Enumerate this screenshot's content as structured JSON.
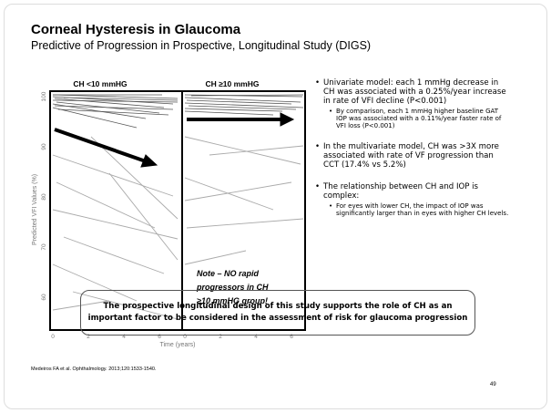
{
  "header": {
    "title": "Corneal Hysteresis in Glaucoma",
    "subtitle": "Predictive of Progression in Prospective, Longitudinal Study (DIGS)"
  },
  "figure": {
    "panels": [
      "CH <10 mmHG",
      "CH ≥10 mmHG"
    ],
    "y_axis_label": "Predicted VFI Values (%)",
    "yticks": [
      "100",
      "90",
      "80",
      "70",
      "60"
    ],
    "xticks": [
      "0",
      "2",
      "4",
      "6"
    ],
    "x_axis_label": "Time (years)",
    "note": [
      "Note – NO rapid",
      "progressors in CH",
      "≥10 mmHG group!"
    ]
  },
  "bullets": [
    {
      "text": "Univariate model: each 1 mmHg decrease in CH was associated with a 0.25%/year increase in rate of VFI decline (P<0.001)",
      "sub": [
        "By comparison, each 1 mmHg higher baseline GAT IOP was associated with a 0.11%/year faster rate of VFI loss (P<0.001)"
      ]
    },
    {
      "text": "In the multivariate model, CH was >3X more associated with rate of VF progression than CCT (17.4% vs 5.2%)",
      "sub": []
    },
    {
      "text": "The relationship between CH and IOP is complex:",
      "sub": [
        "For eyes with lower CH, the impact of IOP was significantly larger than in eyes with higher CH levels."
      ]
    }
  ],
  "conclusion": [
    "The prospective longitudinal design of this study supports the role of CH as an",
    "important factor to be considered in the assessment of risk for glaucoma progression"
  ],
  "citation": "Medeiros FA et al. Ophthalmology. 2013;120:1533-1540.",
  "page_number": "49"
}
